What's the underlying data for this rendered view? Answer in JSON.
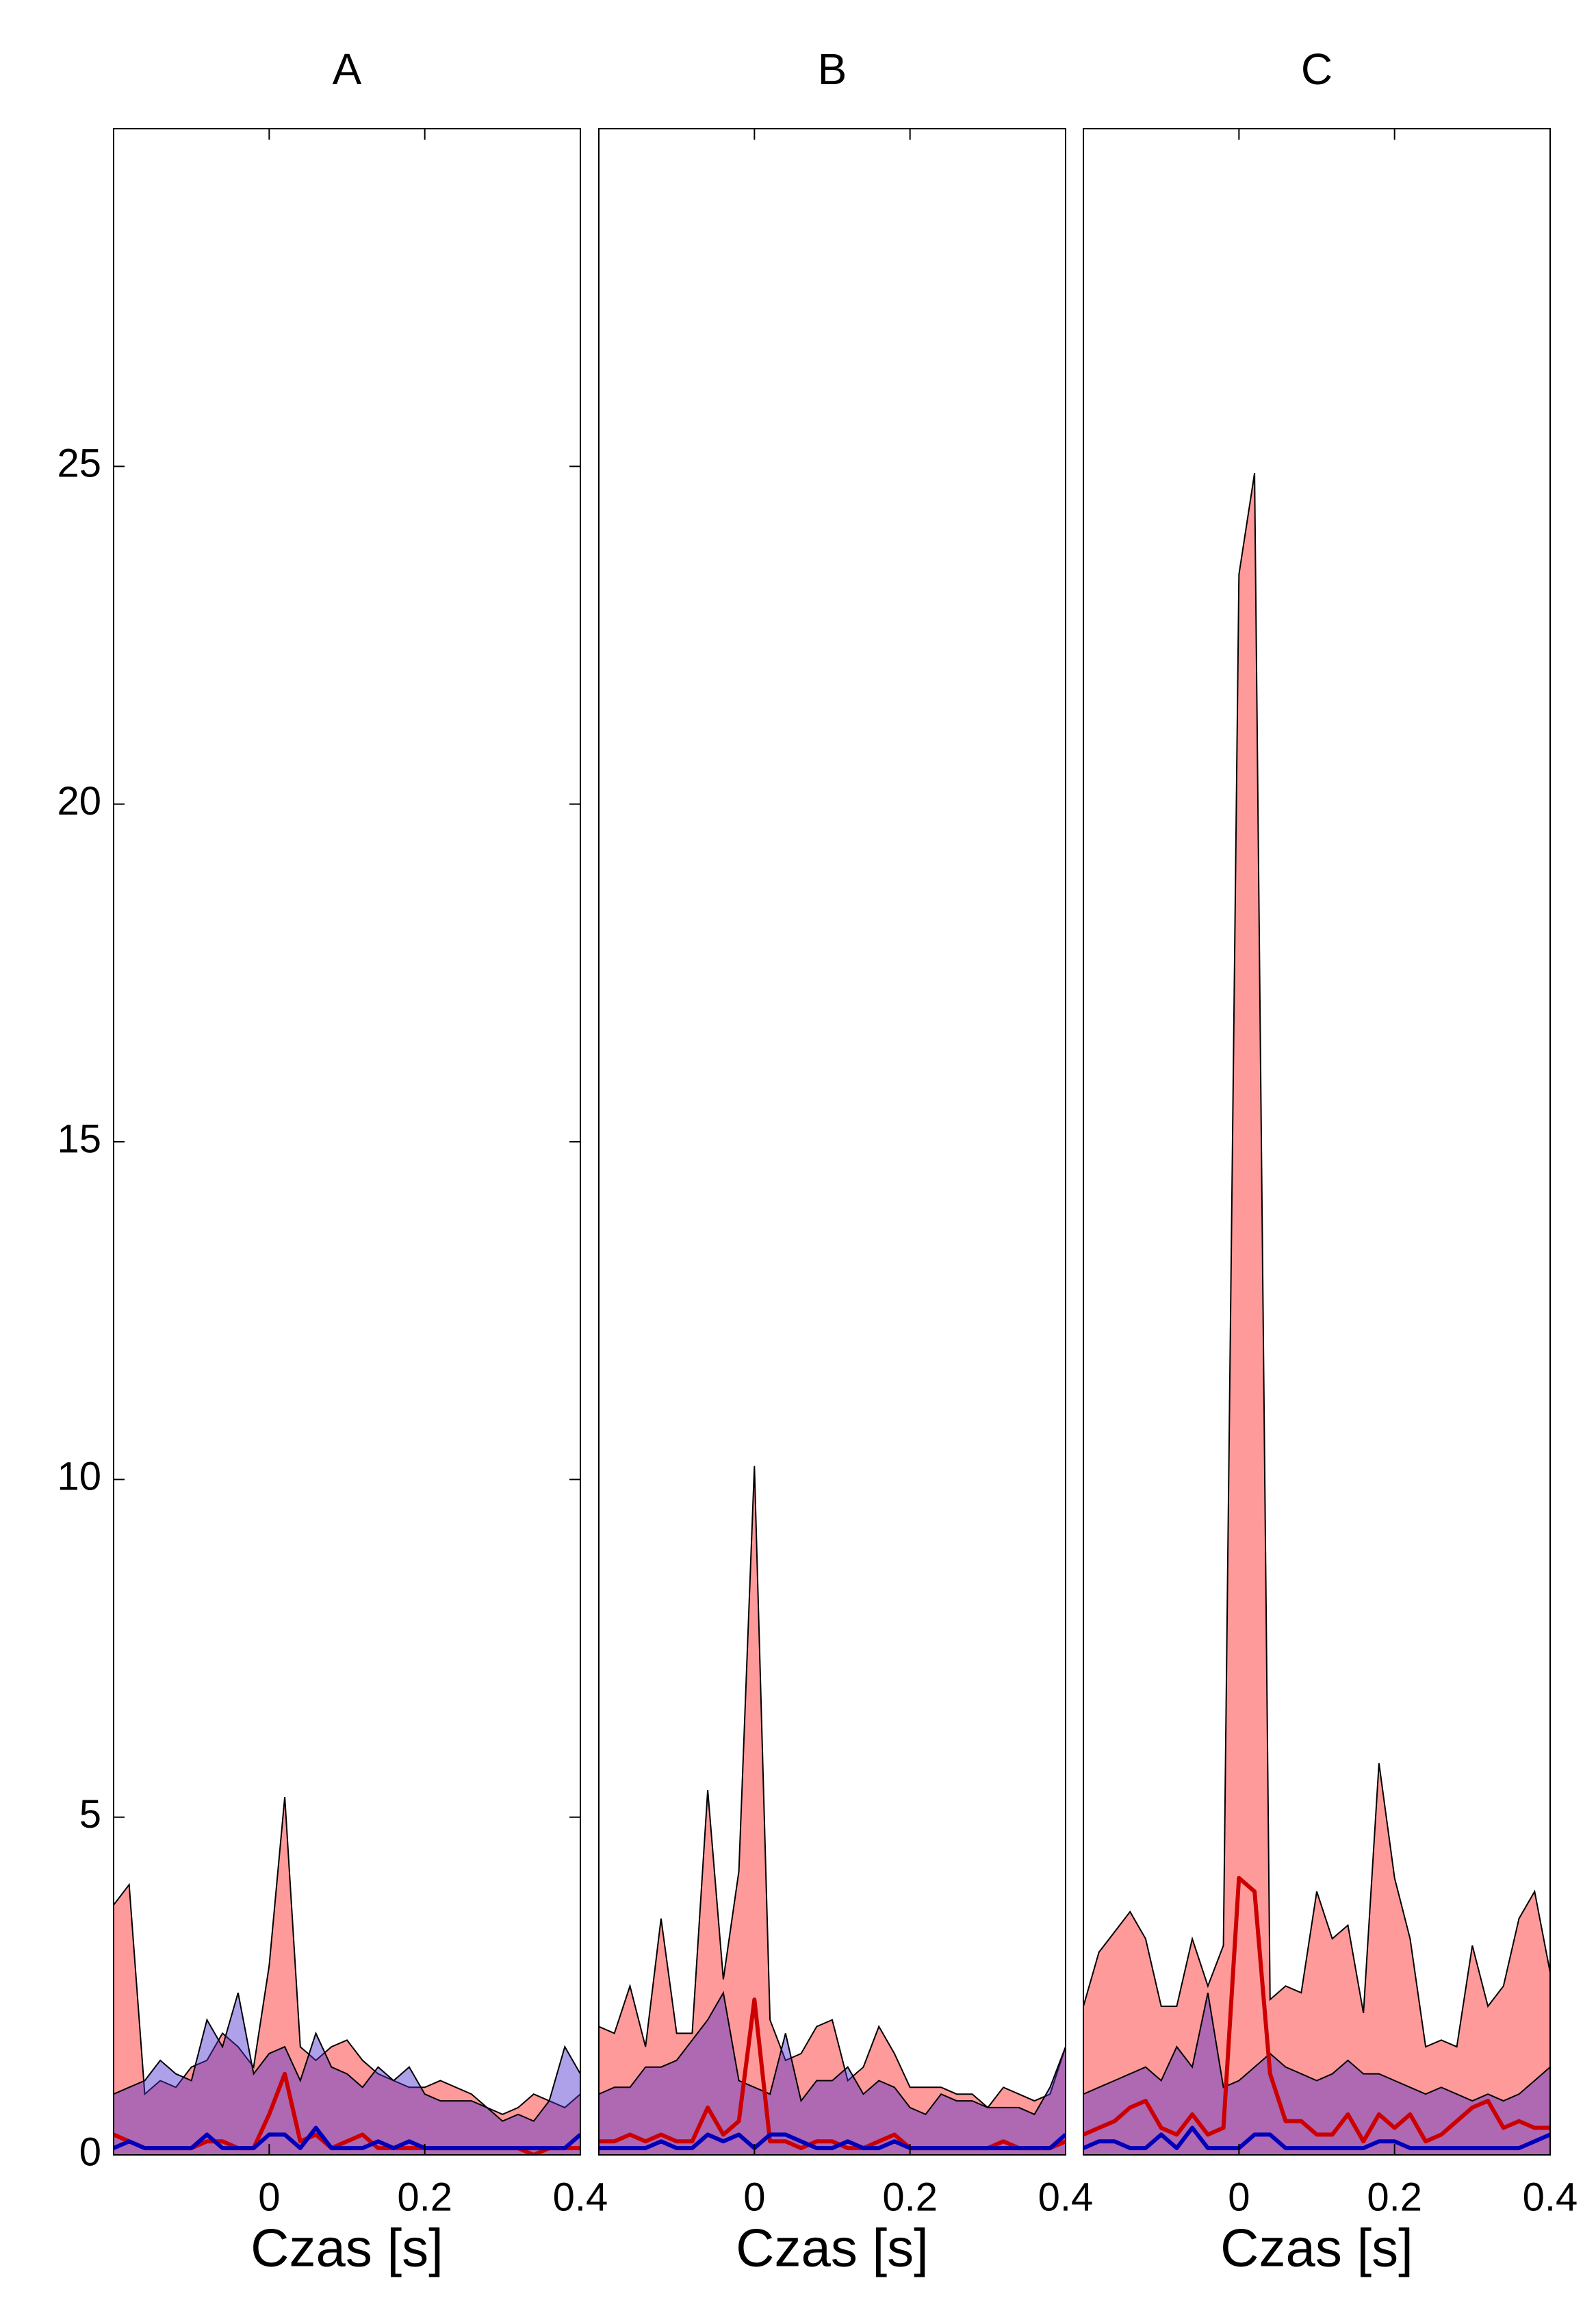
{
  "chart_data": [
    {
      "type": "area",
      "title": "A",
      "xlabel": "Czas [s]",
      "x": [
        -0.2,
        -0.18,
        -0.16,
        -0.14,
        -0.12,
        -0.1,
        -0.08,
        -0.06,
        -0.04,
        -0.02,
        0,
        0.02,
        0.04,
        0.06,
        0.08,
        0.1,
        0.12,
        0.14,
        0.16,
        0.18,
        0.2,
        0.22,
        0.24,
        0.26,
        0.28,
        0.3,
        0.32,
        0.34,
        0.36,
        0.38,
        0.4
      ],
      "xlim": [
        -0.2,
        0.4
      ],
      "xticks": [
        0,
        0.2,
        0.4
      ],
      "ylim": [
        0,
        30
      ],
      "yticks": [
        0,
        5,
        10,
        15,
        20,
        25
      ],
      "series": [
        {
          "kind": "area",
          "color": "#ff9a9a",
          "values": [
            3.7,
            4.0,
            0.9,
            1.1,
            1.0,
            1.3,
            1.4,
            1.8,
            1.6,
            1.3,
            2.8,
            5.3,
            1.6,
            1.4,
            1.6,
            1.7,
            1.4,
            1.2,
            1.1,
            1.0,
            1.0,
            1.1,
            1.0,
            0.9,
            0.7,
            0.6,
            0.7,
            0.9,
            0.8,
            0.7,
            0.9
          ]
        },
        {
          "kind": "area",
          "color": "#4b2fd0",
          "values": [
            0.9,
            1.0,
            1.1,
            1.4,
            1.2,
            1.1,
            2.0,
            1.6,
            2.4,
            1.2,
            1.5,
            1.6,
            1.1,
            1.8,
            1.3,
            1.2,
            1.0,
            1.3,
            1.1,
            1.3,
            0.9,
            0.8,
            0.8,
            0.8,
            0.7,
            0.5,
            0.6,
            0.5,
            0.8,
            1.6,
            1.2
          ]
        },
        {
          "kind": "line",
          "color": "#cc0000",
          "values": [
            0.3,
            0.2,
            0.1,
            0.1,
            0.1,
            0.1,
            0.2,
            0.2,
            0.1,
            0.1,
            0.6,
            1.2,
            0.2,
            0.3,
            0.1,
            0.2,
            0.3,
            0.1,
            0.1,
            0.1,
            0.1,
            0.1,
            0.1,
            0.1,
            0.1,
            0.1,
            0.1,
            0.0,
            0.1,
            0.1,
            0.1
          ]
        },
        {
          "kind": "line",
          "color": "#0000bb",
          "values": [
            0.1,
            0.2,
            0.1,
            0.1,
            0.1,
            0.1,
            0.3,
            0.1,
            0.1,
            0.1,
            0.3,
            0.3,
            0.1,
            0.4,
            0.1,
            0.1,
            0.1,
            0.2,
            0.1,
            0.2,
            0.1,
            0.1,
            0.1,
            0.1,
            0.1,
            0.1,
            0.1,
            0.1,
            0.1,
            0.1,
            0.3
          ]
        }
      ]
    },
    {
      "type": "area",
      "title": "B",
      "xlabel": "Czas [s]",
      "x": [
        -0.2,
        -0.18,
        -0.16,
        -0.14,
        -0.12,
        -0.1,
        -0.08,
        -0.06,
        -0.04,
        -0.02,
        0,
        0.02,
        0.04,
        0.06,
        0.08,
        0.1,
        0.12,
        0.14,
        0.16,
        0.18,
        0.2,
        0.22,
        0.24,
        0.26,
        0.28,
        0.3,
        0.32,
        0.34,
        0.36,
        0.38,
        0.4
      ],
      "xlim": [
        -0.2,
        0.4
      ],
      "xticks": [
        0,
        0.2,
        0.4
      ],
      "ylim": [
        0,
        30
      ],
      "series": [
        {
          "kind": "area",
          "color": "#ff9a9a",
          "values": [
            1.9,
            1.8,
            2.5,
            1.6,
            3.5,
            1.8,
            1.8,
            5.4,
            2.6,
            4.2,
            10.2,
            2.0,
            1.4,
            1.5,
            1.9,
            2.0,
            1.1,
            1.3,
            1.9,
            1.5,
            1.0,
            1.0,
            1.0,
            0.9,
            0.9,
            0.7,
            1.0,
            0.9,
            0.8,
            0.9,
            1.6
          ]
        },
        {
          "kind": "area",
          "color": "#4b2fd0",
          "values": [
            0.9,
            1.0,
            1.0,
            1.3,
            1.3,
            1.4,
            1.7,
            2.0,
            2.4,
            1.1,
            1.0,
            0.9,
            1.8,
            0.8,
            1.1,
            1.1,
            1.3,
            0.9,
            1.1,
            1.0,
            0.7,
            0.6,
            0.9,
            0.8,
            0.8,
            0.7,
            0.7,
            0.7,
            0.6,
            1.0,
            1.6
          ]
        },
        {
          "kind": "line",
          "color": "#cc0000",
          "values": [
            0.2,
            0.2,
            0.3,
            0.2,
            0.3,
            0.2,
            0.2,
            0.7,
            0.3,
            0.5,
            2.3,
            0.2,
            0.2,
            0.1,
            0.2,
            0.2,
            0.1,
            0.1,
            0.2,
            0.3,
            0.1,
            0.1,
            0.1,
            0.1,
            0.1,
            0.1,
            0.2,
            0.1,
            0.1,
            0.1,
            0.2
          ]
        },
        {
          "kind": "line",
          "color": "#0000bb",
          "values": [
            0.1,
            0.1,
            0.1,
            0.1,
            0.2,
            0.1,
            0.1,
            0.3,
            0.2,
            0.3,
            0.1,
            0.3,
            0.3,
            0.2,
            0.1,
            0.1,
            0.2,
            0.1,
            0.1,
            0.2,
            0.1,
            0.1,
            0.1,
            0.1,
            0.1,
            0.1,
            0.1,
            0.1,
            0.1,
            0.1,
            0.3
          ]
        }
      ]
    },
    {
      "type": "area",
      "title": "C",
      "xlabel": "Czas [s]",
      "x": [
        -0.2,
        -0.18,
        -0.16,
        -0.14,
        -0.12,
        -0.1,
        -0.08,
        -0.06,
        -0.04,
        -0.02,
        0,
        0.02,
        0.04,
        0.06,
        0.08,
        0.1,
        0.12,
        0.14,
        0.16,
        0.18,
        0.2,
        0.22,
        0.24,
        0.26,
        0.28,
        0.3,
        0.32,
        0.34,
        0.36,
        0.38,
        0.4
      ],
      "xlim": [
        -0.2,
        0.4
      ],
      "xticks": [
        0,
        0.2,
        0.4
      ],
      "ylim": [
        0,
        30
      ],
      "series": [
        {
          "kind": "area",
          "color": "#ff9a9a",
          "values": [
            2.2,
            3.0,
            3.3,
            3.6,
            3.2,
            2.2,
            2.2,
            3.2,
            2.5,
            3.1,
            23.4,
            24.9,
            2.3,
            2.5,
            2.4,
            3.9,
            3.2,
            3.4,
            2.1,
            5.8,
            4.1,
            3.2,
            1.6,
            1.7,
            1.6,
            3.1,
            2.2,
            2.5,
            3.5,
            3.9,
            2.7
          ]
        },
        {
          "kind": "area",
          "color": "#4b2fd0",
          "values": [
            0.9,
            1.0,
            1.1,
            1.2,
            1.3,
            1.1,
            1.6,
            1.3,
            2.4,
            1.0,
            1.1,
            1.3,
            1.5,
            1.3,
            1.2,
            1.1,
            1.2,
            1.4,
            1.2,
            1.2,
            1.1,
            1.0,
            0.9,
            1.0,
            0.9,
            0.8,
            0.9,
            0.8,
            0.9,
            1.1,
            1.3
          ]
        },
        {
          "kind": "line",
          "color": "#cc0000",
          "values": [
            0.3,
            0.4,
            0.5,
            0.7,
            0.8,
            0.4,
            0.3,
            0.6,
            0.3,
            0.4,
            4.1,
            3.9,
            1.2,
            0.5,
            0.5,
            0.3,
            0.3,
            0.6,
            0.2,
            0.6,
            0.4,
            0.6,
            0.2,
            0.3,
            0.5,
            0.7,
            0.8,
            0.4,
            0.5,
            0.4,
            0.4
          ]
        },
        {
          "kind": "line",
          "color": "#0000bb",
          "values": [
            0.1,
            0.2,
            0.2,
            0.1,
            0.1,
            0.3,
            0.1,
            0.4,
            0.1,
            0.1,
            0.1,
            0.3,
            0.3,
            0.1,
            0.1,
            0.1,
            0.1,
            0.1,
            0.1,
            0.2,
            0.2,
            0.1,
            0.1,
            0.1,
            0.1,
            0.1,
            0.1,
            0.1,
            0.1,
            0.2,
            0.3
          ]
        }
      ]
    }
  ]
}
